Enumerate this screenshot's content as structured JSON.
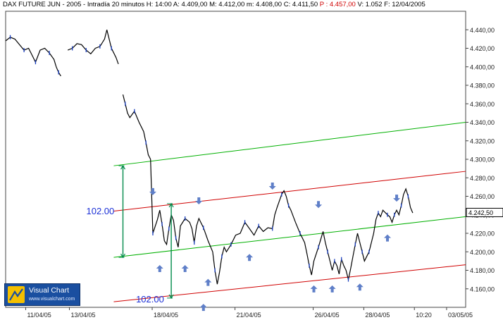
{
  "header": {
    "symbol": "DAX FUTURE  JUN - 2005",
    "interval": " - Intradía 20 minutos",
    "high": " H: 14:00",
    "open": " A: 4.409,00",
    "max": " M: 4.412,00",
    "min": " m: 4.408,00",
    "close": " C: 4.411,50",
    "price_red": " P : 4.457,00",
    "volume": " V: 1.052",
    "date": " F: 12/04/2005"
  },
  "watermark": {
    "title": "Visual Chart",
    "url": "www.visualchart.com",
    "logo_icon": "visual-chart-logo-icon"
  },
  "chart_data": {
    "type": "line",
    "ylim": [
      4140,
      4460
    ],
    "y_ticks": [
      "4.160,00",
      "4.180,00",
      "4.200,00",
      "4.220,00",
      "4.240,00",
      "4.260,00",
      "4.280,00",
      "4.300,00",
      "4.320,00",
      "4.340,00",
      "4.360,00",
      "4.380,00",
      "4.400,00",
      "4.420,00",
      "4.440,00"
    ],
    "y_tick_values": [
      4160,
      4180,
      4200,
      4220,
      4240,
      4260,
      4280,
      4300,
      4320,
      4340,
      4360,
      4380,
      4400,
      4420,
      4440
    ],
    "x_ticks": [
      {
        "label": "11/04/05",
        "x": 0.065
      },
      {
        "label": "13/04/05",
        "x": 0.16
      },
      {
        "label": "18/04/05",
        "x": 0.34
      },
      {
        "label": "21/04/05",
        "x": 0.52
      },
      {
        "label": "26/04/05",
        "x": 0.69
      },
      {
        "label": "28/04/05",
        "x": 0.8
      },
      {
        "label": "10:20",
        "x": 0.91
      },
      {
        "label": "03/05/05",
        "x": 0.98
      }
    ],
    "last_price": {
      "label": "4.242,50",
      "value": 4242.5
    },
    "series": [
      {
        "name": "price",
        "points": [
          [
            0,
            4428
          ],
          [
            0.01,
            4432
          ],
          [
            0.02,
            4430
          ],
          [
            0.03,
            4424
          ],
          [
            0.04,
            4418
          ],
          [
            0.05,
            4420
          ],
          [
            0.06,
            4410
          ],
          [
            0.065,
            4405
          ],
          [
            0.075,
            4418
          ],
          [
            0.085,
            4420
          ],
          [
            0.095,
            4415
          ],
          [
            0.105,
            4408
          ],
          [
            0.11,
            4400
          ],
          [
            0.115,
            4394
          ],
          [
            0.12,
            4390
          ],
          [
            0.135,
            4418
          ],
          [
            0.145,
            4420
          ],
          [
            0.155,
            4425
          ],
          [
            0.165,
            4424
          ],
          [
            0.175,
            4418
          ],
          [
            0.185,
            4414
          ],
          [
            0.195,
            4420
          ],
          [
            0.205,
            4422
          ],
          [
            0.215,
            4430
          ],
          [
            0.22,
            4440
          ],
          [
            0.23,
            4420
          ],
          [
            0.24,
            4410
          ],
          [
            0.245,
            4403
          ],
          [
            0.255,
            4370
          ],
          [
            0.26,
            4360
          ],
          [
            0.265,
            4350
          ],
          [
            0.27,
            4345
          ],
          [
            0.28,
            4352
          ],
          [
            0.29,
            4340
          ],
          [
            0.3,
            4330
          ],
          [
            0.305,
            4318
          ],
          [
            0.31,
            4305
          ],
          [
            0.315,
            4300
          ],
          [
            0.32,
            4220
          ],
          [
            0.33,
            4235
          ],
          [
            0.335,
            4245
          ],
          [
            0.34,
            4230
          ],
          [
            0.345,
            4212
          ],
          [
            0.35,
            4208
          ],
          [
            0.355,
            4225
          ],
          [
            0.36,
            4240
          ],
          [
            0.365,
            4234
          ],
          [
            0.37,
            4215
          ],
          [
            0.375,
            4205
          ],
          [
            0.38,
            4228
          ],
          [
            0.39,
            4236
          ],
          [
            0.4,
            4232
          ],
          [
            0.405,
            4225
          ],
          [
            0.41,
            4210
          ],
          [
            0.415,
            4228
          ],
          [
            0.42,
            4236
          ],
          [
            0.43,
            4226
          ],
          [
            0.44,
            4212
          ],
          [
            0.45,
            4200
          ],
          [
            0.455,
            4180
          ],
          [
            0.46,
            4165
          ],
          [
            0.465,
            4178
          ],
          [
            0.47,
            4195
          ],
          [
            0.475,
            4205
          ],
          [
            0.48,
            4200
          ],
          [
            0.49,
            4208
          ],
          [
            0.5,
            4218
          ],
          [
            0.51,
            4220
          ],
          [
            0.52,
            4232
          ],
          [
            0.53,
            4225
          ],
          [
            0.54,
            4218
          ],
          [
            0.55,
            4228
          ],
          [
            0.56,
            4222
          ],
          [
            0.57,
            4226
          ],
          [
            0.58,
            4225
          ],
          [
            0.585,
            4240
          ],
          [
            0.59,
            4248
          ],
          [
            0.6,
            4262
          ],
          [
            0.605,
            4266
          ],
          [
            0.61,
            4260
          ],
          [
            0.615,
            4250
          ],
          [
            0.62,
            4245
          ],
          [
            0.63,
            4232
          ],
          [
            0.64,
            4220
          ],
          [
            0.65,
            4210
          ],
          [
            0.655,
            4198
          ],
          [
            0.66,
            4185
          ],
          [
            0.665,
            4175
          ],
          [
            0.67,
            4190
          ],
          [
            0.68,
            4205
          ],
          [
            0.69,
            4222
          ],
          [
            0.695,
            4210
          ],
          [
            0.7,
            4200
          ],
          [
            0.705,
            4190
          ],
          [
            0.71,
            4180
          ],
          [
            0.715,
            4190
          ],
          [
            0.72,
            4185
          ],
          [
            0.725,
            4176
          ],
          [
            0.73,
            4192
          ],
          [
            0.735,
            4185
          ],
          [
            0.74,
            4180
          ],
          [
            0.745,
            4170
          ],
          [
            0.75,
            4182
          ],
          [
            0.755,
            4195
          ],
          [
            0.76,
            4208
          ],
          [
            0.765,
            4220
          ],
          [
            0.77,
            4210
          ],
          [
            0.775,
            4200
          ],
          [
            0.78,
            4190
          ],
          [
            0.785,
            4195
          ],
          [
            0.79,
            4200
          ],
          [
            0.8,
            4220
          ],
          [
            0.805,
            4235
          ],
          [
            0.81,
            4242
          ],
          [
            0.815,
            4238
          ],
          [
            0.82,
            4245
          ],
          [
            0.83,
            4240
          ],
          [
            0.835,
            4238
          ],
          [
            0.84,
            4232
          ],
          [
            0.845,
            4240
          ],
          [
            0.85,
            4245
          ],
          [
            0.855,
            4240
          ],
          [
            0.86,
            4250
          ],
          [
            0.865,
            4262
          ],
          [
            0.87,
            4268
          ],
          [
            0.875,
            4260
          ],
          [
            0.88,
            4248
          ],
          [
            0.885,
            4242
          ]
        ]
      }
    ],
    "channel_lines": [
      {
        "color": "#00b000",
        "from": [
          0.235,
          4293
        ],
        "to": [
          1.0,
          4340
        ]
      },
      {
        "color": "#d00000",
        "from": [
          0.235,
          4244
        ],
        "to": [
          1.0,
          4287
        ]
      },
      {
        "color": "#00b000",
        "from": [
          0.235,
          4194
        ],
        "to": [
          1.0,
          4238
        ]
      },
      {
        "color": "#d00000",
        "from": [
          0.235,
          4146
        ],
        "to": [
          1.0,
          4186
        ]
      }
    ],
    "measure_lines": [
      {
        "label": "102.00",
        "x": 0.255,
        "y_top": 4293,
        "y_bottom": 4194,
        "label_at": "left-mid"
      },
      {
        "label": "102.00",
        "x": 0.36,
        "y_top": 4252,
        "y_bottom": 4150,
        "label_at": "left-mid"
      }
    ],
    "arrows_down": [
      [
        0.32,
        4262
      ],
      [
        0.42,
        4252
      ],
      [
        0.58,
        4268
      ],
      [
        0.68,
        4248
      ],
      [
        0.85,
        4255
      ]
    ],
    "arrows_up": [
      [
        0.335,
        4185
      ],
      [
        0.39,
        4185
      ],
      [
        0.44,
        4170
      ],
      [
        0.53,
        4197
      ],
      [
        0.67,
        4163
      ],
      [
        0.71,
        4163
      ],
      [
        0.77,
        4165
      ],
      [
        0.83,
        4218
      ],
      [
        0.43,
        4143
      ]
    ],
    "grid": "off"
  },
  "colors": {
    "background": "#ffffff",
    "price": "#000000",
    "price_accent": "#1a3fbf",
    "axis": "#444444",
    "arrow": "#5f7fc8",
    "measure": "#008a4a",
    "measure_label": "#1a2fd6"
  }
}
